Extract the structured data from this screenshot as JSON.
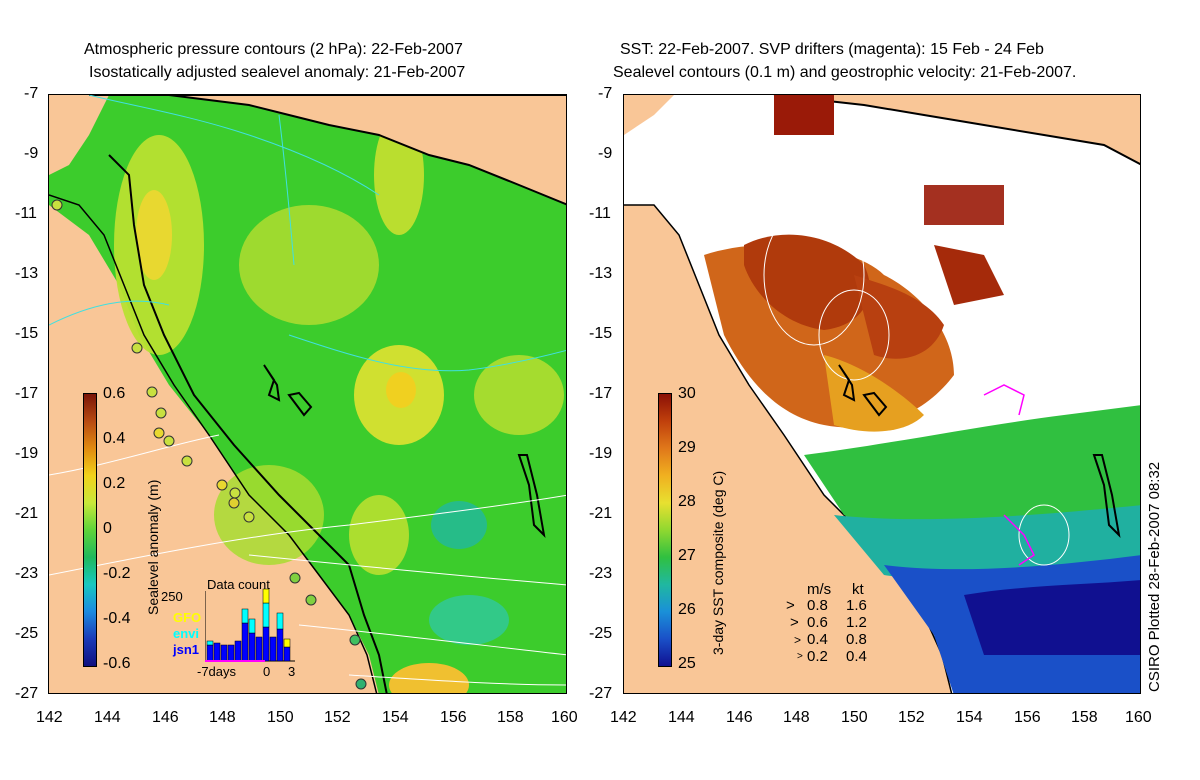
{
  "left_panel": {
    "title_line1": "Atmospheric pressure contours (2 hPa): 22-Feb-2007",
    "title_line2": "Isostatically adjusted sealevel anomaly: 21-Feb-2007",
    "colorbar": {
      "label": "Sealevel anomaly (m)",
      "ticks": [
        "0.6",
        "0.4",
        "0.2",
        "0",
        "-0.2",
        "-0.4",
        "-0.6"
      ],
      "colors": [
        "#7a1408",
        "#b84a12",
        "#e08a10",
        "#f2d21a",
        "#c8e83a",
        "#5fd43a",
        "#1fb85c",
        "#18c8c0",
        "#1a8ae0",
        "#1a3ab8",
        "#101080"
      ]
    },
    "inset": {
      "title": "Data count",
      "y_tick": "250",
      "x_ticks": [
        "-7days",
        "0",
        "3"
      ],
      "legend": [
        {
          "label": "GFO",
          "color": "#ffff00"
        },
        {
          "label": "envi",
          "color": "#00ffff"
        },
        {
          "label": "jsn1",
          "color": "#0000ff"
        }
      ]
    },
    "land_color": "#f9c697"
  },
  "right_panel": {
    "title_line1": "SST: 22-Feb-2007. SVP drifters (magenta): 15 Feb - 24 Feb",
    "title_line2": "Sealevel contours (0.1 m) and geostrophic velocity: 21-Feb-2007.",
    "colorbar": {
      "label": "3-day SST composite (deg C)",
      "ticks": [
        "30",
        "29",
        "28",
        "27",
        "26",
        "25"
      ],
      "colors": [
        "#8a1006",
        "#c0400c",
        "#e0781a",
        "#f0b020",
        "#e8e030",
        "#90d830",
        "#30c040",
        "#20b8a0",
        "#1a90d8",
        "#1a50c8",
        "#101090"
      ]
    },
    "velocity_legend": {
      "header_ms": "m/s",
      "header_kt": "kt",
      "rows": [
        {
          "ms": "0.8",
          "kt": "1.6"
        },
        {
          "ms": "0.6",
          "kt": "1.2"
        },
        {
          "ms": "0.4",
          "kt": "0.8"
        },
        {
          "ms": "0.2",
          "kt": "0.4"
        }
      ]
    },
    "stamp": "CSIRO Plotted 28-Feb-2007 08:32"
  },
  "axes": {
    "y_ticks": [
      "-7",
      "-9",
      "-11",
      "-13",
      "-15",
      "-17",
      "-19",
      "-21",
      "-23",
      "-25",
      "-27"
    ],
    "x_ticks": [
      "142",
      "144",
      "146",
      "148",
      "150",
      "152",
      "154",
      "156",
      "158",
      "160"
    ]
  }
}
